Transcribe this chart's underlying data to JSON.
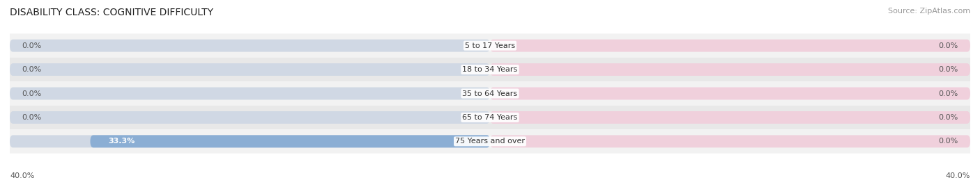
{
  "title": "DISABILITY CLASS: COGNITIVE DIFFICULTY",
  "source_text": "Source: ZipAtlas.com",
  "categories": [
    "5 to 17 Years",
    "18 to 34 Years",
    "35 to 64 Years",
    "65 to 74 Years",
    "75 Years and over"
  ],
  "male_values": [
    0.0,
    0.0,
    0.0,
    0.0,
    33.3
  ],
  "female_values": [
    0.0,
    0.0,
    0.0,
    0.0,
    0.0
  ],
  "male_color": "#8BAED4",
  "female_color": "#F2A8C0",
  "bar_bg_color_left": "#D0D8E4",
  "bar_bg_color_right": "#F0D0DC",
  "row_bg_colors": [
    "#F2F2F2",
    "#E8E8E8"
  ],
  "xlim": 40.0,
  "title_fontsize": 10,
  "source_fontsize": 8,
  "label_fontsize": 8,
  "cat_fontsize": 8,
  "axis_label_fontsize": 8,
  "figsize": [
    14.06,
    2.69
  ],
  "dpi": 100
}
